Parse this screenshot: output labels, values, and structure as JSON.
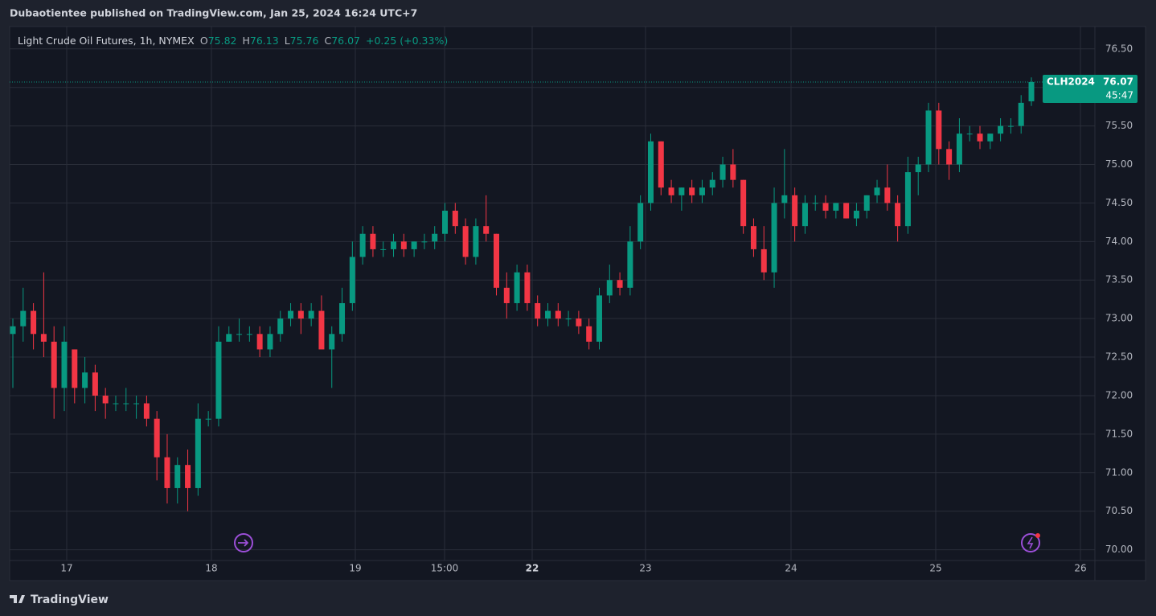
{
  "published": "Dubaotientee published on TradingView.com, Jan 25, 2024 16:24 UTC+7",
  "brand": "TradingView",
  "chart_data": {
    "type": "candlestick",
    "title": "Light Crude Oil Futures, 1h, NYMEX",
    "ohlc_labels": [
      "O",
      "H",
      "L",
      "C"
    ],
    "change": "+0.25 (+0.33%)",
    "symbol": "CLH2024",
    "countdown": "45:47",
    "up_color": "#089981",
    "down_color": "#f23645",
    "grid": true,
    "ylim": [
      69.86,
      76.79
    ],
    "yticks": [
      {
        "value": 70,
        "label": "70.00"
      },
      {
        "value": 70.5,
        "label": "70.50"
      },
      {
        "value": 71,
        "label": "71.00"
      },
      {
        "value": 71.5,
        "label": "71.50"
      },
      {
        "value": 72,
        "label": "72.00"
      },
      {
        "value": 72.5,
        "label": "72.50"
      },
      {
        "value": 73,
        "label": "73.00"
      },
      {
        "value": 73.5,
        "label": "73.50"
      },
      {
        "value": 74,
        "label": "74.00"
      },
      {
        "value": 74.5,
        "label": "74.50"
      },
      {
        "value": 75,
        "label": "75.00"
      },
      {
        "value": 75.5,
        "label": "75.50"
      },
      {
        "value": 76,
        "label": "76.00"
      },
      {
        "value": 76.5,
        "label": "76.50"
      }
    ],
    "xtick_labels": [
      "17",
      "18",
      "19",
      "15:00",
      "22",
      "23",
      "24",
      "25",
      "26"
    ],
    "candles": [
      [
        72.8,
        73.0,
        72.1,
        72.9
      ],
      [
        72.9,
        73.4,
        72.7,
        73.1
      ],
      [
        73.1,
        73.2,
        72.6,
        72.8
      ],
      [
        72.8,
        73.6,
        72.5,
        72.7
      ],
      [
        72.7,
        72.9,
        71.7,
        72.1
      ],
      [
        72.1,
        72.9,
        71.8,
        72.7
      ],
      [
        72.6,
        72.6,
        71.9,
        72.1
      ],
      [
        72.1,
        72.5,
        71.9,
        72.3
      ],
      [
        72.3,
        72.4,
        71.8,
        72.0
      ],
      [
        72.0,
        72.1,
        71.7,
        71.9
      ],
      [
        71.9,
        72.0,
        71.8,
        71.9
      ],
      [
        71.9,
        72.1,
        71.8,
        71.9
      ],
      [
        71.9,
        72.0,
        71.7,
        71.9
      ],
      [
        71.9,
        72.0,
        71.6,
        71.7
      ],
      [
        71.7,
        71.8,
        70.9,
        71.2
      ],
      [
        71.2,
        71.5,
        70.6,
        70.8
      ],
      [
        70.8,
        71.2,
        70.6,
        71.1
      ],
      [
        71.1,
        71.3,
        70.5,
        70.8
      ],
      [
        70.8,
        71.9,
        70.7,
        71.7
      ],
      [
        71.7,
        71.8,
        71.6,
        71.7
      ],
      [
        71.7,
        72.9,
        71.6,
        72.7
      ],
      [
        72.7,
        72.9,
        72.7,
        72.8
      ],
      [
        72.8,
        73.0,
        72.7,
        72.8
      ],
      [
        72.8,
        72.9,
        72.7,
        72.8
      ],
      [
        72.8,
        72.9,
        72.5,
        72.6
      ],
      [
        72.6,
        72.9,
        72.5,
        72.8
      ],
      [
        72.8,
        73.1,
        72.7,
        73.0
      ],
      [
        73.0,
        73.2,
        72.9,
        73.1
      ],
      [
        73.1,
        73.2,
        72.8,
        73.0
      ],
      [
        73.0,
        73.2,
        72.9,
        73.1
      ],
      [
        73.1,
        73.3,
        72.6,
        72.6
      ],
      [
        72.6,
        72.9,
        72.1,
        72.8
      ],
      [
        72.8,
        73.4,
        72.7,
        73.2
      ],
      [
        73.2,
        74.0,
        73.1,
        73.8
      ],
      [
        73.8,
        74.2,
        73.7,
        74.1
      ],
      [
        74.1,
        74.2,
        73.8,
        73.9
      ],
      [
        73.9,
        74.0,
        73.8,
        73.9
      ],
      [
        73.9,
        74.1,
        73.8,
        74.0
      ],
      [
        74.0,
        74.1,
        73.8,
        73.9
      ],
      [
        73.9,
        74.0,
        73.8,
        74.0
      ],
      [
        74.0,
        74.1,
        73.9,
        74.0
      ],
      [
        74.0,
        74.2,
        73.9,
        74.1
      ],
      [
        74.1,
        74.5,
        74.0,
        74.4
      ],
      [
        74.4,
        74.5,
        74.1,
        74.2
      ],
      [
        74.2,
        74.3,
        73.7,
        73.8
      ],
      [
        73.8,
        74.3,
        73.7,
        74.2
      ],
      [
        74.2,
        74.6,
        74.0,
        74.1
      ],
      [
        74.1,
        74.1,
        73.3,
        73.4
      ],
      [
        73.4,
        73.6,
        73.0,
        73.2
      ],
      [
        73.2,
        73.7,
        73.1,
        73.6
      ],
      [
        73.6,
        73.7,
        73.1,
        73.2
      ],
      [
        73.2,
        73.3,
        72.9,
        73.0
      ],
      [
        73.0,
        73.2,
        72.9,
        73.1
      ],
      [
        73.1,
        73.2,
        72.9,
        73.0
      ],
      [
        73.0,
        73.1,
        72.9,
        73.0
      ],
      [
        73.0,
        73.1,
        72.8,
        72.9
      ],
      [
        72.9,
        73.0,
        72.6,
        72.7
      ],
      [
        72.7,
        73.4,
        72.6,
        73.3
      ],
      [
        73.3,
        73.7,
        73.2,
        73.5
      ],
      [
        73.5,
        73.6,
        73.3,
        73.4
      ],
      [
        73.4,
        74.2,
        73.3,
        74.0
      ],
      [
        74.0,
        74.6,
        73.9,
        74.5
      ],
      [
        74.5,
        75.4,
        74.4,
        75.3
      ],
      [
        75.3,
        75.3,
        74.6,
        74.7
      ],
      [
        74.7,
        74.8,
        74.5,
        74.6
      ],
      [
        74.6,
        74.7,
        74.4,
        74.7
      ],
      [
        74.7,
        74.8,
        74.5,
        74.6
      ],
      [
        74.6,
        74.8,
        74.5,
        74.7
      ],
      [
        74.7,
        74.9,
        74.6,
        74.8
      ],
      [
        74.8,
        75.1,
        74.7,
        75.0
      ],
      [
        75.0,
        75.2,
        74.7,
        74.8
      ],
      [
        74.8,
        74.8,
        74.1,
        74.2
      ],
      [
        74.2,
        74.3,
        73.8,
        73.9
      ],
      [
        73.9,
        74.2,
        73.5,
        73.6
      ],
      [
        73.6,
        74.7,
        73.4,
        74.5
      ],
      [
        74.5,
        75.2,
        74.3,
        74.6
      ],
      [
        74.6,
        74.7,
        74.0,
        74.2
      ],
      [
        74.2,
        74.6,
        74.1,
        74.5
      ],
      [
        74.5,
        74.6,
        74.4,
        74.5
      ],
      [
        74.5,
        74.6,
        74.3,
        74.4
      ],
      [
        74.4,
        74.5,
        74.3,
        74.5
      ],
      [
        74.5,
        74.5,
        74.3,
        74.3
      ],
      [
        74.3,
        74.5,
        74.2,
        74.4
      ],
      [
        74.4,
        74.6,
        74.3,
        74.6
      ],
      [
        74.6,
        74.8,
        74.5,
        74.7
      ],
      [
        74.7,
        75.0,
        74.4,
        74.5
      ],
      [
        74.5,
        74.6,
        74.0,
        74.2
      ],
      [
        74.2,
        75.1,
        74.1,
        74.9
      ],
      [
        74.9,
        75.1,
        74.6,
        75.0
      ],
      [
        75.0,
        75.8,
        74.9,
        75.7
      ],
      [
        75.7,
        75.8,
        75.0,
        75.2
      ],
      [
        75.2,
        75.3,
        74.8,
        75.0
      ],
      [
        75.0,
        75.6,
        74.9,
        75.4
      ],
      [
        75.4,
        75.5,
        75.3,
        75.4
      ],
      [
        75.4,
        75.5,
        75.2,
        75.3
      ],
      [
        75.3,
        75.4,
        75.2,
        75.4
      ],
      [
        75.4,
        75.6,
        75.3,
        75.5
      ],
      [
        75.5,
        75.6,
        75.4,
        75.5
      ],
      [
        75.5,
        75.9,
        75.4,
        75.8
      ],
      [
        75.82,
        76.13,
        75.76,
        76.07
      ]
    ]
  }
}
